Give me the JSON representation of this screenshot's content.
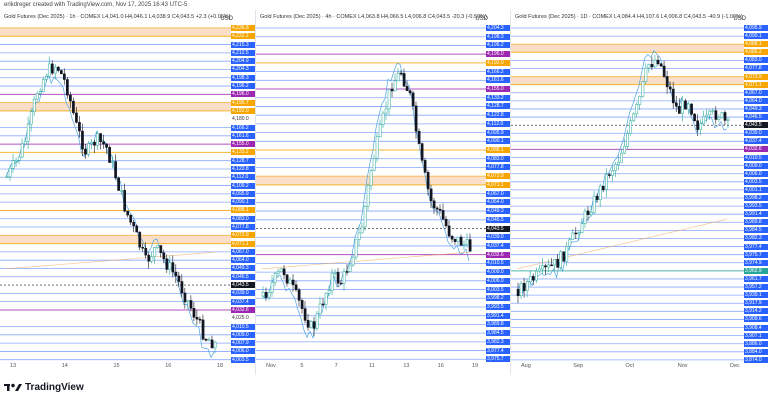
{
  "caption": "erikdreger created with TradingView.com, Nov 17, 2025 16:43 UTC-5",
  "panes": [
    {
      "header": "Gold Futures (Dec 2025) · 1h · COMEX  L4,041.0  H4,046.1  L4,038.9  C4,043.5  +2.3 (+0.06%)",
      "currency": "USD",
      "x_labels": [
        "13",
        "14",
        "15",
        "16",
        "18"
      ],
      "price_labels": [
        {
          "text": "4,236.8",
          "color": "#f7a600"
        },
        {
          "text": "4,232.2",
          "color": "#f7a600"
        },
        {
          "text": "4,215.3",
          "color": "#2962ff"
        },
        {
          "text": "4,212.5",
          "color": "#2962ff"
        },
        {
          "text": "4,204.9",
          "color": "#2962ff"
        },
        {
          "text": "4,204.3",
          "color": "#2962ff"
        },
        {
          "text": "4,198.3",
          "color": "#2962ff"
        },
        {
          "text": "4,196.2",
          "color": "#2962ff"
        },
        {
          "text": "4,196.0",
          "color": "#9c27b0"
        },
        {
          "text": "4,195.7",
          "color": "#f7a600"
        },
        {
          "text": "4,192.0",
          "color": "#f7a600"
        },
        {
          "text": "4,180.0",
          "color": "none"
        },
        {
          "text": "4,166.2",
          "color": "#2962ff"
        },
        {
          "text": "4,161.6",
          "color": "#2962ff"
        },
        {
          "text": "4,155.0",
          "color": "#9c27b0"
        },
        {
          "text": "4,133.2",
          "color": "#f7a600"
        },
        {
          "text": "4,128.7",
          "color": "#2962ff"
        },
        {
          "text": "4,122.8",
          "color": "#2962ff"
        },
        {
          "text": "4,112.0",
          "color": "#2962ff"
        },
        {
          "text": "4,109.2",
          "color": "#2962ff"
        },
        {
          "text": "4,095.9",
          "color": "#2962ff"
        },
        {
          "text": "4,090.1",
          "color": "#2962ff"
        },
        {
          "text": "4,088.1",
          "color": "#f7a600"
        },
        {
          "text": "4,083.0",
          "color": "#2962ff"
        },
        {
          "text": "4,077.8",
          "color": "#2962ff"
        },
        {
          "text": "4,073.9",
          "color": "#f7a600"
        },
        {
          "text": "4,071.1",
          "color": "#f7a600"
        },
        {
          "text": "4,067.0",
          "color": "#2962ff"
        },
        {
          "text": "4,064.0",
          "color": "#2962ff"
        },
        {
          "text": "4,049.3",
          "color": "#2962ff"
        },
        {
          "text": "4,046.5",
          "color": "#2962ff"
        },
        {
          "text": "4,043.5",
          "color": "#131722"
        },
        {
          "text": "4,039.0",
          "color": "#2962ff"
        },
        {
          "text": "4,037.4",
          "color": "#2962ff"
        },
        {
          "text": "4,032.6",
          "color": "#9c27b0"
        },
        {
          "text": "4,025.0",
          "color": "none"
        },
        {
          "text": "4,010.5",
          "color": "#2962ff"
        },
        {
          "text": "4,009.0",
          "color": "#2962ff"
        },
        {
          "text": "4,007.9",
          "color": "#2962ff"
        },
        {
          "text": "4,006.0",
          "color": "#2962ff"
        },
        {
          "text": "4,003.5",
          "color": "#2962ff"
        }
      ]
    },
    {
      "header": "Gold Futures (Dec 2025) · 4h · COMEX  L4,063.8  H4,066.5  L4,006.8  C4,043.5  -20.3 (-0.50%)",
      "currency": "USD",
      "x_labels": [
        "Nov",
        "5",
        "7",
        "11",
        "13",
        "16",
        "19"
      ],
      "price_labels": [
        {
          "text": "4,204.3",
          "color": "#2962ff"
        },
        {
          "text": "4,198.3",
          "color": "#2962ff"
        },
        {
          "text": "4,196.2",
          "color": "#2962ff"
        },
        {
          "text": "4,196.0",
          "color": "#9c27b0"
        },
        {
          "text": "4,192.0",
          "color": "#f7a600"
        },
        {
          "text": "4,166.2",
          "color": "#2962ff"
        },
        {
          "text": "4,161.6",
          "color": "#2962ff"
        },
        {
          "text": "4,155.0",
          "color": "#9c27b0"
        },
        {
          "text": "4,133.2",
          "color": "#2962ff"
        },
        {
          "text": "4,128.7",
          "color": "#2962ff"
        },
        {
          "text": "4,122.8",
          "color": "#2962ff"
        },
        {
          "text": "4,112.0",
          "color": "#2962ff"
        },
        {
          "text": "4,095.9",
          "color": "#2962ff"
        },
        {
          "text": "4,090.1",
          "color": "#2962ff"
        },
        {
          "text": "4,088.1",
          "color": "#f7a600"
        },
        {
          "text": "4,083.0",
          "color": "#2962ff"
        },
        {
          "text": "4,077.8",
          "color": "#2962ff"
        },
        {
          "text": "4,073.9",
          "color": "#f7a600"
        },
        {
          "text": "4,071.1",
          "color": "#f7a600"
        },
        {
          "text": "4,067.0",
          "color": "#2962ff"
        },
        {
          "text": "4,064.0",
          "color": "#2962ff"
        },
        {
          "text": "4,049.3",
          "color": "#2962ff"
        },
        {
          "text": "4,046.5",
          "color": "#2962ff"
        },
        {
          "text": "4,043.5",
          "color": "#131722"
        },
        {
          "text": "4,039.0",
          "color": "#2962ff"
        },
        {
          "text": "4,037.4",
          "color": "#2962ff"
        },
        {
          "text": "4,032.6",
          "color": "#9c27b0"
        },
        {
          "text": "4,010.5",
          "color": "#2962ff"
        },
        {
          "text": "4,009.0",
          "color": "#2962ff"
        },
        {
          "text": "4,006.0",
          "color": "#2962ff"
        },
        {
          "text": "4,003.5",
          "color": "#2962ff"
        },
        {
          "text": "3,998.2",
          "color": "#2962ff"
        },
        {
          "text": "3,993.5",
          "color": "#2962ff"
        },
        {
          "text": "3,991.4",
          "color": "#2962ff"
        },
        {
          "text": "3,989.8",
          "color": "#2962ff"
        },
        {
          "text": "3,984.5",
          "color": "#2962ff"
        },
        {
          "text": "3,982.3",
          "color": "#2962ff"
        },
        {
          "text": "3,977.4",
          "color": "#2962ff"
        },
        {
          "text": "3,975.7",
          "color": "#2962ff"
        }
      ]
    },
    {
      "header": "Gold Futures (Dec 2025) · 1D · COMEX  L4,084.4  H4,107.6  L4,006.8  C4,043.5  -40.9 (-1.00%)",
      "currency": "USD",
      "x_labels": [
        "Aug",
        "Sep",
        "Oct",
        "Nov",
        "Dec"
      ],
      "price_labels": [
        {
          "text": "4,095.9",
          "color": "#2962ff"
        },
        {
          "text": "4,090.1",
          "color": "#2962ff"
        },
        {
          "text": "4,088.1",
          "color": "#f7a600"
        },
        {
          "text": "4,086.2",
          "color": "#f7a600"
        },
        {
          "text": "4,083.0",
          "color": "#2962ff"
        },
        {
          "text": "4,077.8",
          "color": "#2962ff"
        },
        {
          "text": "4,073.9",
          "color": "#f7a600"
        },
        {
          "text": "4,071.1",
          "color": "#f7a600"
        },
        {
          "text": "4,067.0",
          "color": "#2962ff"
        },
        {
          "text": "4,064.0",
          "color": "#2962ff"
        },
        {
          "text": "4,049.3",
          "color": "#2962ff"
        },
        {
          "text": "4,046.5",
          "color": "#2962ff"
        },
        {
          "text": "4,043.5",
          "color": "#131722"
        },
        {
          "text": "4,039.0",
          "color": "#2962ff"
        },
        {
          "text": "4,037.4",
          "color": "#2962ff"
        },
        {
          "text": "4,032.6",
          "color": "#9c27b0"
        },
        {
          "text": "4,010.5",
          "color": "#2962ff"
        },
        {
          "text": "4,009.0",
          "color": "#2962ff"
        },
        {
          "text": "4,006.0",
          "color": "#2962ff"
        },
        {
          "text": "4,003.5",
          "color": "#2962ff"
        },
        {
          "text": "4,001.1",
          "color": "#2962ff"
        },
        {
          "text": "3,998.2",
          "color": "#2962ff"
        },
        {
          "text": "3,993.5",
          "color": "#2962ff"
        },
        {
          "text": "3,991.4",
          "color": "#2962ff"
        },
        {
          "text": "3,989.8",
          "color": "#2962ff"
        },
        {
          "text": "3,984.5",
          "color": "#2962ff"
        },
        {
          "text": "3,982.3",
          "color": "#2962ff"
        },
        {
          "text": "3,977.4",
          "color": "#2962ff"
        },
        {
          "text": "3,975.7",
          "color": "#2962ff"
        },
        {
          "text": "3,974.9",
          "color": "#2962ff"
        },
        {
          "text": "3,962.9",
          "color": "#26a69a"
        },
        {
          "text": "3,961.7",
          "color": "#2962ff"
        },
        {
          "text": "3,957.2",
          "color": "#2962ff"
        },
        {
          "text": "3,939.1",
          "color": "#2962ff"
        },
        {
          "text": "3,917.9",
          "color": "#2962ff"
        },
        {
          "text": "3,914.2",
          "color": "#2962ff"
        },
        {
          "text": "3,909.6",
          "color": "#2962ff"
        },
        {
          "text": "3,908.4",
          "color": "#2962ff"
        },
        {
          "text": "3,907.1",
          "color": "#2962ff"
        },
        {
          "text": "3,886.0",
          "color": "#2962ff"
        },
        {
          "text": "3,884.0",
          "color": "#2962ff"
        },
        {
          "text": "3,874.0",
          "color": "#2962ff"
        }
      ]
    }
  ],
  "brand": "TradingView",
  "colors": {
    "up": "#26a69a",
    "down": "#131722",
    "level": "#2962ff",
    "zone": "#f7c8a4",
    "accent_purple": "#9c27b0",
    "orange": "#f7a600"
  }
}
